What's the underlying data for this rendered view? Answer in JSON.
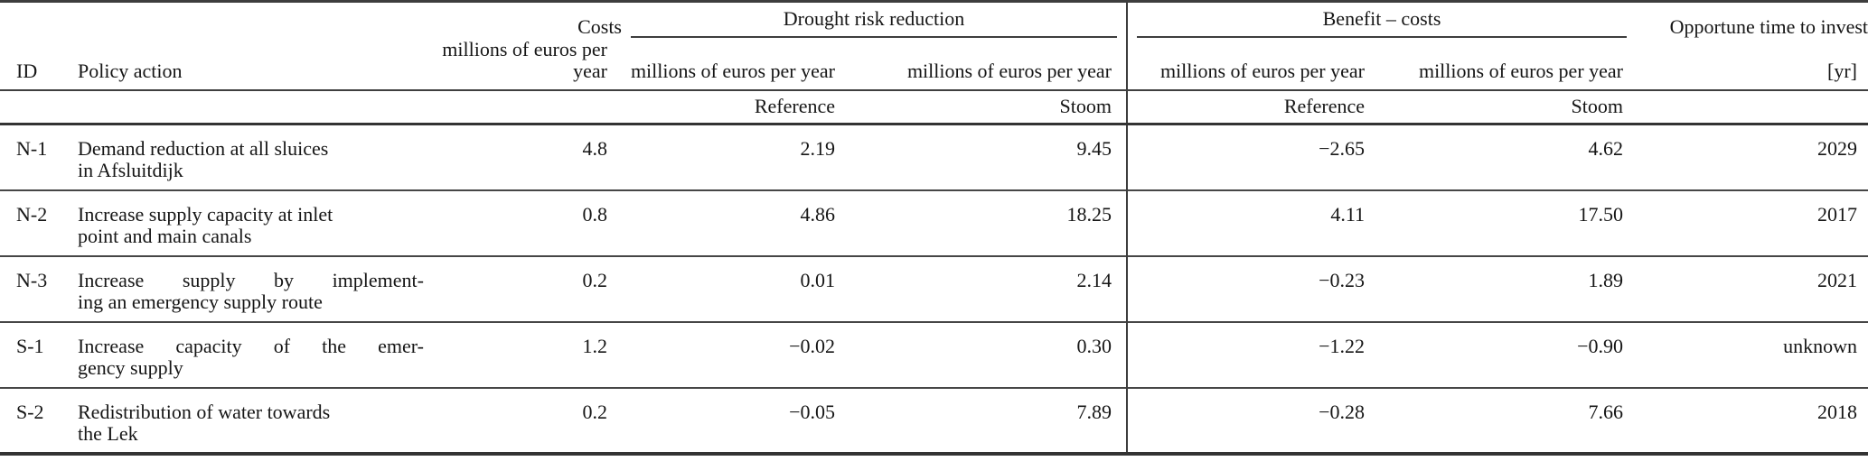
{
  "table": {
    "groups": {
      "costs": "Costs",
      "drought": "Drought risk reduction",
      "benefit": "Benefit – costs",
      "opportune": "Opportune time to invest"
    },
    "units": {
      "per_year": "millions of euros per year",
      "yr": "[yr]"
    },
    "headers": {
      "id": "ID",
      "action": "Policy action",
      "reference": "Reference",
      "stoom": "Stoom"
    },
    "rows": [
      {
        "id": "N-1",
        "action_line1": "Demand reduction at all sluices",
        "action_line2": "in Afsluitdijk",
        "costs": "4.8",
        "drr_reference": "2.19",
        "drr_stoom": "9.45",
        "bc_reference": "−2.65",
        "bc_stoom": "4.62",
        "opportune": "2029"
      },
      {
        "id": "N-2",
        "action_line1": "Increase supply capacity at inlet",
        "action_line2": "point and main canals",
        "costs": "0.8",
        "drr_reference": "4.86",
        "drr_stoom": "18.25",
        "bc_reference": "4.11",
        "bc_stoom": "17.50",
        "opportune": "2017"
      },
      {
        "id": "N-3",
        "action_line1": "Increase supply by implement-",
        "action_line2": "ing an emergency supply route",
        "costs": "0.2",
        "drr_reference": "0.01",
        "drr_stoom": "2.14",
        "bc_reference": "−0.23",
        "bc_stoom": "1.89",
        "opportune": "2021"
      },
      {
        "id": "S-1",
        "action_line1": "Increase capacity of the emer-",
        "action_line2": "gency supply",
        "costs": "1.2",
        "drr_reference": "−0.02",
        "drr_stoom": "0.30",
        "bc_reference": "−1.22",
        "bc_stoom": "−0.90",
        "opportune": "unknown"
      },
      {
        "id": "S-2",
        "action_line1": "Redistribution of water towards",
        "action_line2": "the Lek",
        "costs": "0.2",
        "drr_reference": "−0.05",
        "drr_stoom": "7.89",
        "bc_reference": "−0.28",
        "bc_stoom": "7.66",
        "opportune": "2018"
      }
    ]
  }
}
